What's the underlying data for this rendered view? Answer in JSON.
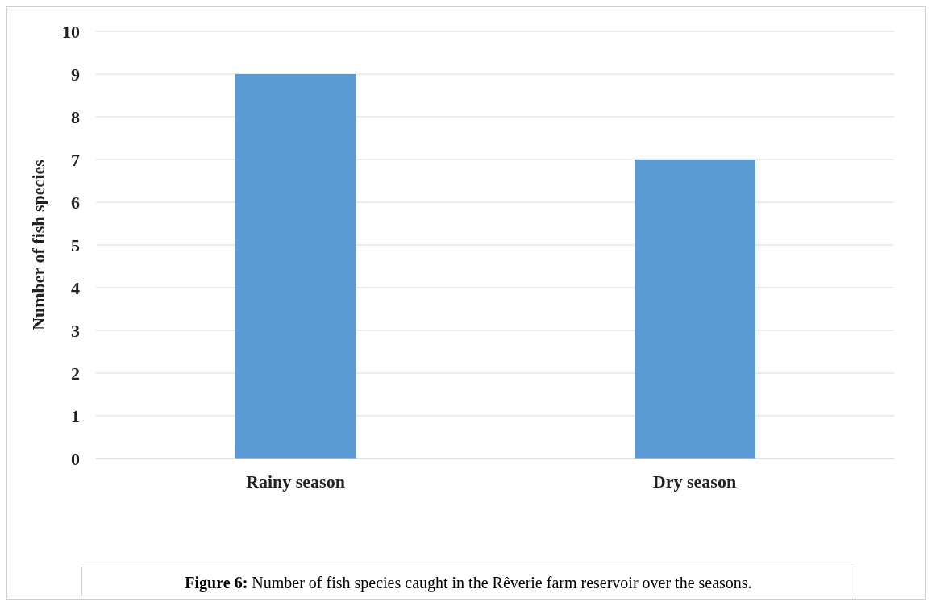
{
  "chart_data": {
    "type": "bar",
    "ylabel": "Number  of fish species",
    "categories": [
      "Rainy season",
      "Dry season"
    ],
    "values": [
      9,
      7
    ],
    "color": "#5b9bd5",
    "ylim": [
      0,
      10
    ],
    "yticks": [
      0,
      1,
      2,
      3,
      4,
      5,
      6,
      7,
      8,
      9,
      10
    ],
    "grid": "y",
    "annotations": [
      "Figure 6: Number of fish species caught in the Rêverie farm reservoir over the seasons."
    ]
  }
}
